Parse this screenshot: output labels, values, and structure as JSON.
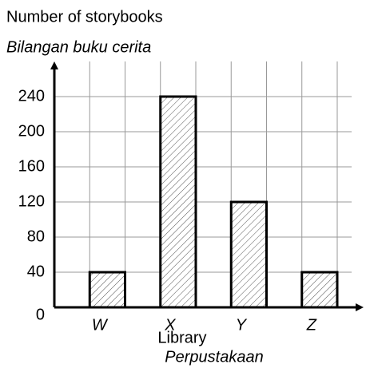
{
  "chart_data": {
    "type": "bar",
    "ylabel": "Number of storybooks",
    "ylabel_translation": "Bilangan buku cerita",
    "xlabel": "Library",
    "xlabel_translation": "Perpustakaan",
    "categories": [
      "W",
      "X",
      "Y",
      "Z"
    ],
    "values": [
      40,
      240,
      120,
      40
    ],
    "color": "#ffffff",
    "ylim": [
      0,
      280
    ],
    "yticks": [
      0,
      40,
      80,
      120,
      160,
      200,
      240
    ],
    "grid": true
  }
}
